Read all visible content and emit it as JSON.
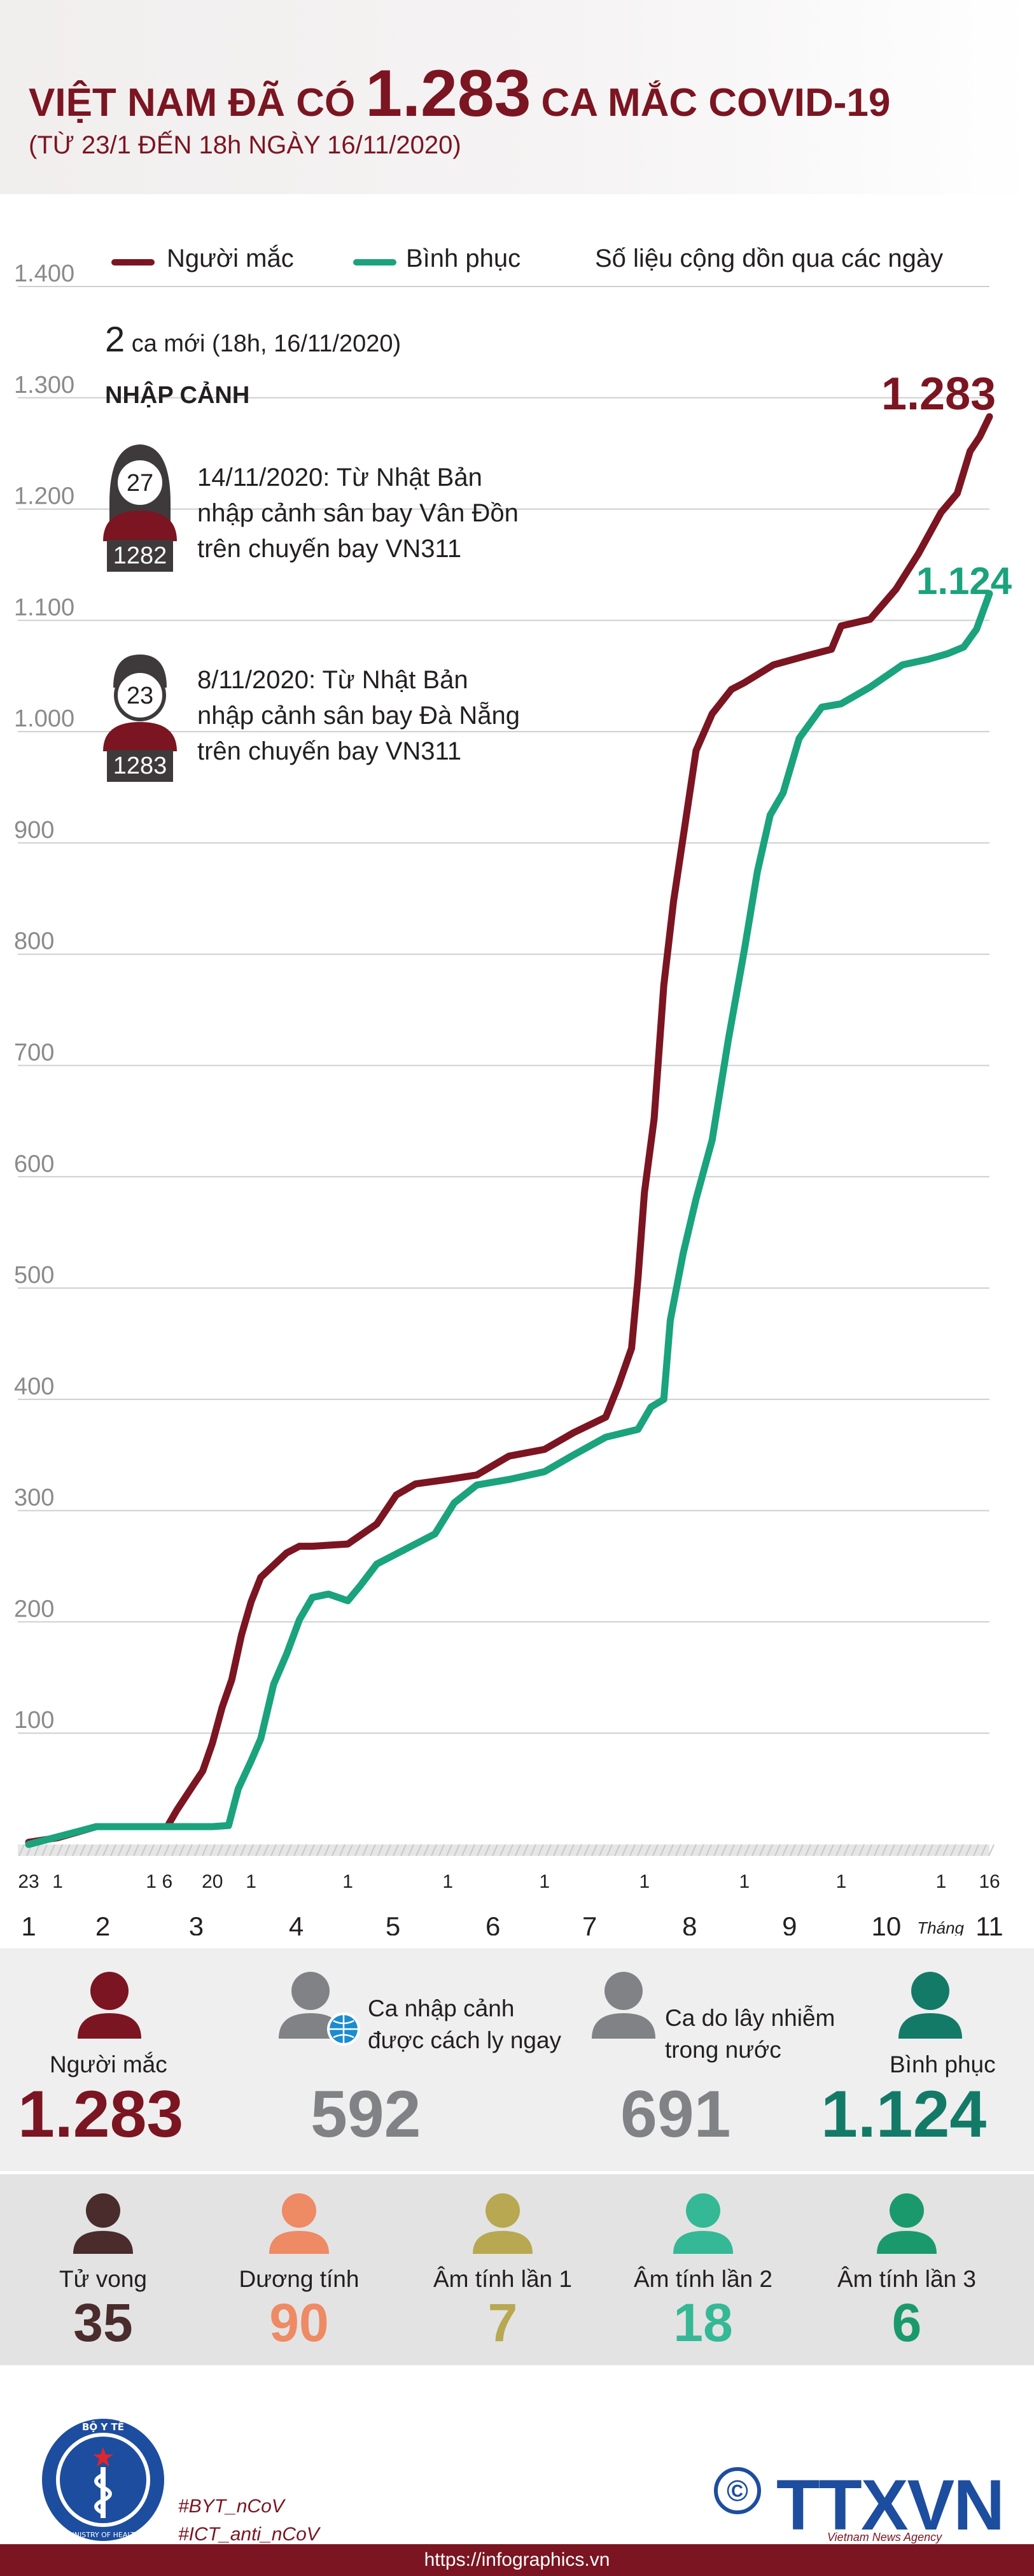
{
  "title": {
    "prefix": "VIỆT NAM ĐÃ CÓ",
    "number": "1.283",
    "suffix": "CA MẮC COVID-19"
  },
  "subtitle": "(TỪ 23/1 ĐẾN 18h NGÀY 16/11/2020)",
  "legend": {
    "infected": "Người mắc",
    "recovered": "Bình phục",
    "note": "Số liệu cộng dồn qua các ngày"
  },
  "colors": {
    "infected": "#7b1521",
    "recovered": "#1aa37c",
    "grid": "#cfcfcf",
    "axis_text": "#8a8a8a",
    "header_bg": "#f1eeee"
  },
  "new_cases": {
    "count": "2",
    "text": "ca mới (18h, 16/11/2020)"
  },
  "import_title": "NHẬP CẢNH",
  "cases": [
    {
      "age": "27",
      "id": "1282",
      "gender": "female",
      "lines": [
        "14/11/2020: Từ Nhật Bản",
        "nhập cảnh sân bay Vân Đồn",
        "trên chuyến bay VN311"
      ]
    },
    {
      "age": "23",
      "id": "1283",
      "gender": "male",
      "lines": [
        "8/11/2020: Từ Nhật Bản",
        "nhập cảnh sân bay Đà Nẵng",
        "trên chuyến bay VN311"
      ]
    }
  ],
  "chart_data": {
    "type": "line",
    "ylim": [
      0,
      1400
    ],
    "yticks": [
      100,
      200,
      300,
      400,
      500,
      600,
      700,
      800,
      900,
      1000,
      1100,
      1200,
      1300,
      1400
    ],
    "ytick_labels": [
      "100",
      "200",
      "300",
      "400",
      "500",
      "600",
      "700",
      "800",
      "900",
      "1.000",
      "1.100",
      "1.200",
      "1.300",
      "1.400"
    ],
    "x_range": [
      "2020-01-23",
      "2020-11-16"
    ],
    "day_ticks": [
      {
        "date": "2020-01-23",
        "label": "23"
      },
      {
        "date": "2020-02-01",
        "label": "1"
      },
      {
        "date": "2020-03-01",
        "label": "1"
      },
      {
        "date": "2020-03-06",
        "label": "6"
      },
      {
        "date": "2020-03-20",
        "label": "20"
      },
      {
        "date": "2020-04-01",
        "label": "1"
      },
      {
        "date": "2020-05-01",
        "label": "1"
      },
      {
        "date": "2020-06-01",
        "label": "1"
      },
      {
        "date": "2020-07-01",
        "label": "1"
      },
      {
        "date": "2020-08-01",
        "label": "1"
      },
      {
        "date": "2020-09-01",
        "label": "1"
      },
      {
        "date": "2020-10-01",
        "label": "1"
      },
      {
        "date": "2020-11-01",
        "label": "1"
      },
      {
        "date": "2020-11-16",
        "label": "16"
      }
    ],
    "month_labels": [
      {
        "date": "2020-01-23",
        "label": "1"
      },
      {
        "date": "2020-02-15",
        "label": "2"
      },
      {
        "date": "2020-03-15",
        "label": "3"
      },
      {
        "date": "2020-04-15",
        "label": "4"
      },
      {
        "date": "2020-05-15",
        "label": "5"
      },
      {
        "date": "2020-06-15",
        "label": "6"
      },
      {
        "date": "2020-07-15",
        "label": "7"
      },
      {
        "date": "2020-08-15",
        "label": "8"
      },
      {
        "date": "2020-09-15",
        "label": "9"
      },
      {
        "date": "2020-10-15",
        "label": "10"
      },
      {
        "date": "2020-11-16",
        "label": "11"
      }
    ],
    "month_word": "Tháng",
    "series": [
      {
        "name": "Người mắc",
        "end_label": "1.283",
        "points": [
          [
            "2020-01-23",
            2
          ],
          [
            "2020-02-01",
            6
          ],
          [
            "2020-02-13",
            16
          ],
          [
            "2020-03-06",
            16
          ],
          [
            "2020-03-09",
            31
          ],
          [
            "2020-03-14",
            53
          ],
          [
            "2020-03-17",
            66
          ],
          [
            "2020-03-20",
            91
          ],
          [
            "2020-03-23",
            123
          ],
          [
            "2020-03-26",
            148
          ],
          [
            "2020-03-29",
            188
          ],
          [
            "2020-04-01",
            218
          ],
          [
            "2020-04-04",
            240
          ],
          [
            "2020-04-08",
            251
          ],
          [
            "2020-04-12",
            262
          ],
          [
            "2020-04-16",
            268
          ],
          [
            "2020-04-20",
            268
          ],
          [
            "2020-05-01",
            270
          ],
          [
            "2020-05-10",
            288
          ],
          [
            "2020-05-16",
            314
          ],
          [
            "2020-05-22",
            324
          ],
          [
            "2020-06-01",
            328
          ],
          [
            "2020-06-10",
            332
          ],
          [
            "2020-06-20",
            349
          ],
          [
            "2020-07-01",
            355
          ],
          [
            "2020-07-10",
            370
          ],
          [
            "2020-07-20",
            384
          ],
          [
            "2020-07-24",
            413
          ],
          [
            "2020-07-28",
            446
          ],
          [
            "2020-07-30",
            509
          ],
          [
            "2020-08-01",
            586
          ],
          [
            "2020-08-04",
            652
          ],
          [
            "2020-08-07",
            772
          ],
          [
            "2020-08-10",
            847
          ],
          [
            "2020-08-13",
            905
          ],
          [
            "2020-08-17",
            983
          ],
          [
            "2020-08-22",
            1016
          ],
          [
            "2020-08-28",
            1038
          ],
          [
            "2020-09-01",
            1044
          ],
          [
            "2020-09-10",
            1060
          ],
          [
            "2020-09-20",
            1068
          ],
          [
            "2020-09-28",
            1074
          ],
          [
            "2020-10-01",
            1095
          ],
          [
            "2020-10-10",
            1101
          ],
          [
            "2020-10-18",
            1128
          ],
          [
            "2020-10-25",
            1160
          ],
          [
            "2020-11-01",
            1197
          ],
          [
            "2020-11-06",
            1214
          ],
          [
            "2020-11-10",
            1252
          ],
          [
            "2020-11-13",
            1265
          ],
          [
            "2020-11-16",
            1283
          ]
        ]
      },
      {
        "name": "Bình phục",
        "end_label": "1.124",
        "points": [
          [
            "2020-01-23",
            0
          ],
          [
            "2020-02-13",
            16
          ],
          [
            "2020-03-20",
            16
          ],
          [
            "2020-03-25",
            17
          ],
          [
            "2020-03-28",
            50
          ],
          [
            "2020-04-01",
            75
          ],
          [
            "2020-04-04",
            95
          ],
          [
            "2020-04-08",
            144
          ],
          [
            "2020-04-12",
            171
          ],
          [
            "2020-04-16",
            202
          ],
          [
            "2020-04-20",
            222
          ],
          [
            "2020-04-25",
            225
          ],
          [
            "2020-05-01",
            219
          ],
          [
            "2020-05-05",
            233
          ],
          [
            "2020-05-10",
            252
          ],
          [
            "2020-05-20",
            267
          ],
          [
            "2020-05-28",
            279
          ],
          [
            "2020-06-03",
            307
          ],
          [
            "2020-06-10",
            323
          ],
          [
            "2020-06-20",
            328
          ],
          [
            "2020-07-01",
            335
          ],
          [
            "2020-07-10",
            350
          ],
          [
            "2020-07-20",
            366
          ],
          [
            "2020-07-30",
            373
          ],
          [
            "2020-08-03",
            393
          ],
          [
            "2020-08-07",
            400
          ],
          [
            "2020-08-09",
            471
          ],
          [
            "2020-08-13",
            531
          ],
          [
            "2020-08-17",
            580
          ],
          [
            "2020-08-22",
            633
          ],
          [
            "2020-08-27",
            723
          ],
          [
            "2020-09-01",
            804
          ],
          [
            "2020-09-05",
            874
          ],
          [
            "2020-09-09",
            925
          ],
          [
            "2020-09-13",
            945
          ],
          [
            "2020-09-18",
            994
          ],
          [
            "2020-09-25",
            1022
          ],
          [
            "2020-10-01",
            1025
          ],
          [
            "2020-10-10",
            1040
          ],
          [
            "2020-10-20",
            1060
          ],
          [
            "2020-10-28",
            1065
          ],
          [
            "2020-11-03",
            1070
          ],
          [
            "2020-11-08",
            1076
          ],
          [
            "2020-11-12",
            1092
          ],
          [
            "2020-11-16",
            1124
          ]
        ]
      }
    ]
  },
  "stats_top": [
    {
      "label": "Người mắc",
      "value": "1.283",
      "color": "#7b1521",
      "icon": "person-icon"
    },
    {
      "label": "Ca nhập cảnh được cách ly ngay",
      "label_lines": [
        "Ca nhập cảnh",
        "được cách ly ngay"
      ],
      "value": "592",
      "color": "#808285",
      "icon": "person-globe-icon"
    },
    {
      "label": "Ca do lây nhiễm trong nước",
      "label_lines": [
        "Ca do lây nhiễm",
        "trong nước"
      ],
      "value": "691",
      "color": "#808285",
      "icon": "person-icon"
    },
    {
      "label": "Bình phục",
      "value": "1.124",
      "color": "#137a68",
      "icon": "person-icon"
    }
  ],
  "stats_bottom": [
    {
      "label": "Tử vong",
      "value": "35",
      "color": "#4a2c2c",
      "icon_color": "#4a2c2c"
    },
    {
      "label": "Dương tính",
      "value": "90",
      "color": "#ee8a64",
      "icon_color": "#ee8a64"
    },
    {
      "label": "Âm tính lần 1",
      "value": "7",
      "color": "#b7a851",
      "icon_color": "#b7a851"
    },
    {
      "label": "Âm tính lần 2",
      "value": "18",
      "color": "#35b895",
      "icon_color": "#35b895"
    },
    {
      "label": "Âm tính lần 3",
      "value": "6",
      "color": "#1a9a6c",
      "icon_color": "#1a9a6c"
    }
  ],
  "footer": {
    "tags": [
      "#BYT_nCoV",
      "#ICT_anti_nCoV"
    ],
    "url": "https://infographics.vn",
    "agency": "TTXVN",
    "agency_sub": "Vietnam News Agency",
    "copyright_symbol": "©",
    "logo_text_top": "BỘ Y TẾ",
    "logo_text_bottom": "MINISTRY OF HEALTH"
  }
}
